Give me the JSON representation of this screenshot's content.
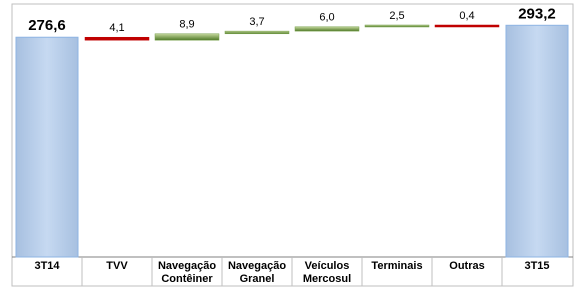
{
  "chart_data": {
    "type": "waterfall",
    "categories": [
      "3T14",
      "TVV",
      "Navegação Contêiner",
      "Navegação Granel",
      "Veículos Mercosul",
      "Terminais",
      "Outras",
      "3T15"
    ],
    "values": [
      276.6,
      -4.1,
      8.9,
      3.7,
      6.0,
      2.5,
      -0.4,
      293.2
    ],
    "value_labels": [
      "276,6",
      "4,1",
      "8,9",
      "3,7",
      "6,0",
      "2,5",
      "0,4",
      "293,2"
    ],
    "colors": {
      "total": "#b9cde5",
      "increase": "#77a04a",
      "decrease": "#c00000"
    }
  }
}
